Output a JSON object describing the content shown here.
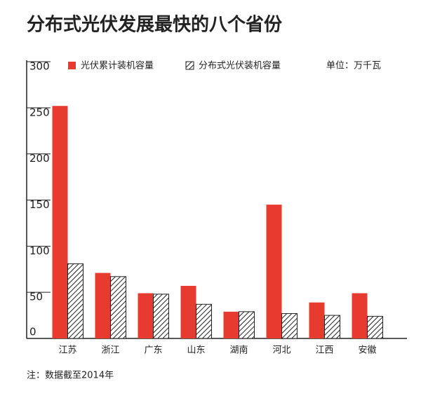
{
  "chart_data": {
    "type": "bar",
    "title": "分布式光伏发展最快的八个省份",
    "unit_label": "单位：万千瓦",
    "note": "注：数据截至2014年",
    "categories": [
      "江苏",
      "浙江",
      "广东",
      "山东",
      "湖南",
      "河北",
      "江西",
      "安徽"
    ],
    "series": [
      {
        "name": "光伏累计装机容量",
        "color": "#e63b2e",
        "hatch": false,
        "values": [
          252,
          71,
          49,
          57,
          29,
          145,
          39,
          49
        ]
      },
      {
        "name": "分布式光伏装机容量",
        "color": "#222222",
        "hatch": true,
        "values": [
          81,
          67,
          48,
          37,
          29,
          27,
          25,
          24
        ]
      }
    ],
    "ylim": [
      0,
      300
    ],
    "yticks": [
      0,
      50,
      100,
      150,
      200,
      250,
      300
    ],
    "grid": false
  }
}
